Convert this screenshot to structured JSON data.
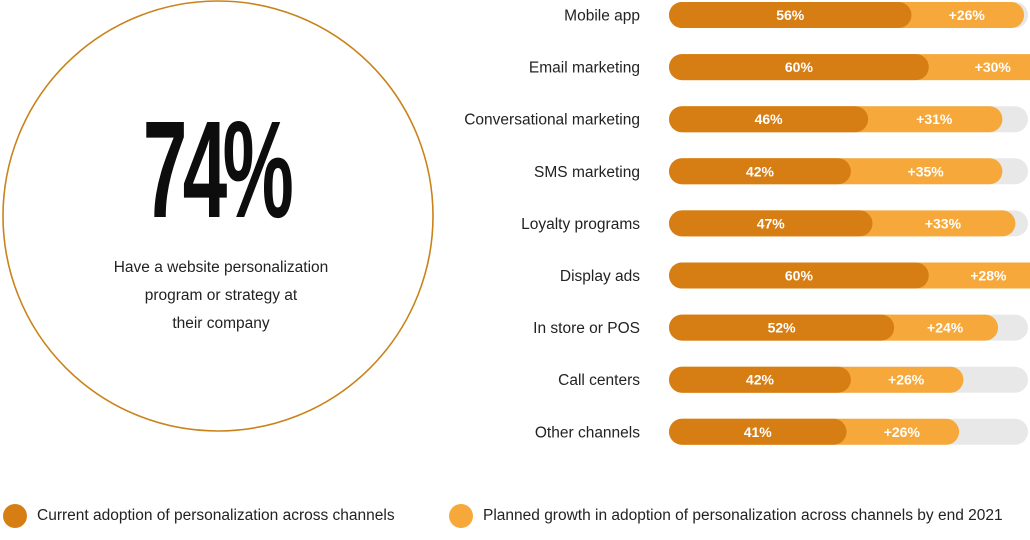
{
  "summary": {
    "value": "74%",
    "caption_lines": [
      "Have a website personalization",
      "program or strategy at",
      "their company"
    ]
  },
  "colors": {
    "current": "#d67e13",
    "planned": "#f6a83b",
    "track": "#e8e8e8",
    "ring": "#c9831a"
  },
  "chart_data": {
    "type": "bar",
    "orientation": "horizontal",
    "stacked": true,
    "xlim": [
      0,
      100
    ],
    "categories": [
      "Mobile app",
      "Email marketing",
      "Conversational marketing",
      "SMS marketing",
      "Loyalty programs",
      "Display ads",
      "In store or POS",
      "Call centers",
      "Other channels"
    ],
    "series": [
      {
        "name": "Current adoption of personalization across channels",
        "values": [
          56,
          60,
          46,
          42,
          47,
          60,
          52,
          42,
          41
        ],
        "labels": [
          "56%",
          "60%",
          "46%",
          "42%",
          "47%",
          "60%",
          "52%",
          "42%",
          "41%"
        ]
      },
      {
        "name": "Planned growth in adoption of personalization across channels by end 2021",
        "values": [
          26,
          30,
          31,
          35,
          33,
          28,
          24,
          26,
          26
        ],
        "labels": [
          "+26%",
          "+30%",
          "+31%",
          "+35%",
          "+33%",
          "+28%",
          "+24%",
          "+26%",
          "+26%"
        ]
      }
    ],
    "legend_position": "bottom",
    "grid": false
  }
}
